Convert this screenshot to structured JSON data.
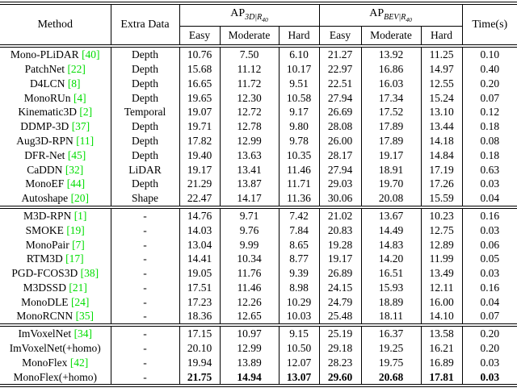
{
  "table": {
    "citation_color": "#00dd00",
    "header": {
      "method": "Method",
      "extra_data": "Extra Data",
      "ap3d": {
        "prefix": "AP",
        "sub": "3D|R",
        "subsub": "40"
      },
      "apbev": {
        "prefix": "AP",
        "sub": "BEV|R",
        "subsub": "40"
      },
      "time": "Time(s)",
      "subcols": [
        "Easy",
        "Moderate",
        "Hard",
        "Easy",
        "Moderate",
        "Hard"
      ]
    },
    "groups": [
      {
        "rows": [
          {
            "method": "Mono-PLiDAR",
            "cite": "[40]",
            "extra": "Depth",
            "values": [
              "10.76",
              "7.50",
              "6.10",
              "21.27",
              "13.92",
              "11.25",
              "0.10"
            ],
            "bold": false
          },
          {
            "method": "PatchNet",
            "cite": "[22]",
            "extra": "Depth",
            "values": [
              "15.68",
              "11.12",
              "10.17",
              "22.97",
              "16.86",
              "14.97",
              "0.40"
            ],
            "bold": false
          },
          {
            "method": "D4LCN",
            "cite": "[8]",
            "extra": "Depth",
            "values": [
              "16.65",
              "11.72",
              "9.51",
              "22.51",
              "16.03",
              "12.55",
              "0.20"
            ],
            "bold": false
          },
          {
            "method": "MonoRUn",
            "cite": "[4]",
            "extra": "Depth",
            "values": [
              "19.65",
              "12.30",
              "10.58",
              "27.94",
              "17.34",
              "15.24",
              "0.07"
            ],
            "bold": false
          },
          {
            "method": "Kinematic3D",
            "cite": "[2]",
            "extra": "Temporal",
            "values": [
              "19.07",
              "12.72",
              "9.17",
              "26.69",
              "17.52",
              "13.10",
              "0.12"
            ],
            "bold": false
          },
          {
            "method": "DDMP-3D",
            "cite": "[37]",
            "extra": "Depth",
            "values": [
              "19.71",
              "12.78",
              "9.80",
              "28.08",
              "17.89",
              "13.44",
              "0.18"
            ],
            "bold": false
          },
          {
            "method": "Aug3D-RPN",
            "cite": "[11]",
            "extra": "Depth",
            "values": [
              "17.82",
              "12.99",
              "9.78",
              "26.00",
              "17.89",
              "14.18",
              "0.08"
            ],
            "bold": false
          },
          {
            "method": "DFR-Net",
            "cite": "[45]",
            "extra": "Depth",
            "values": [
              "19.40",
              "13.63",
              "10.35",
              "28.17",
              "19.17",
              "14.84",
              "0.18"
            ],
            "bold": false
          },
          {
            "method": "CaDDN",
            "cite": "[32]",
            "extra": "LiDAR",
            "values": [
              "19.17",
              "13.41",
              "11.46",
              "27.94",
              "18.91",
              "17.19",
              "0.63"
            ],
            "bold": false
          },
          {
            "method": "MonoEF",
            "cite": "[44]",
            "extra": "Depth",
            "values": [
              "21.29",
              "13.87",
              "11.71",
              "29.03",
              "19.70",
              "17.26",
              "0.03"
            ],
            "bold": false
          },
          {
            "method": "Autoshape",
            "cite": "[20]",
            "extra": "Shape",
            "values": [
              "22.47",
              "14.17",
              "11.36",
              "30.06",
              "20.08",
              "15.59",
              "0.04"
            ],
            "bold": false
          }
        ]
      },
      {
        "rows": [
          {
            "method": "M3D-RPN",
            "cite": "[1]",
            "extra": "-",
            "values": [
              "14.76",
              "9.71",
              "7.42",
              "21.02",
              "13.67",
              "10.23",
              "0.16"
            ],
            "bold": false
          },
          {
            "method": "SMOKE",
            "cite": "[19]",
            "extra": "-",
            "values": [
              "14.03",
              "9.76",
              "7.84",
              "20.83",
              "14.49",
              "12.75",
              "0.03"
            ],
            "bold": false
          },
          {
            "method": "MonoPair",
            "cite": "[7]",
            "extra": "-",
            "values": [
              "13.04",
              "9.99",
              "8.65",
              "19.28",
              "14.83",
              "12.89",
              "0.06"
            ],
            "bold": false
          },
          {
            "method": "RTM3D",
            "cite": "[17]",
            "extra": "-",
            "values": [
              "14.41",
              "10.34",
              "8.77",
              "19.17",
              "14.20",
              "11.99",
              "0.05"
            ],
            "bold": false
          },
          {
            "method": "PGD-FCOS3D",
            "cite": "[38]",
            "extra": "-",
            "values": [
              "19.05",
              "11.76",
              "9.39",
              "26.89",
              "16.51",
              "13.49",
              "0.03"
            ],
            "bold": false
          },
          {
            "method": "M3DSSD",
            "cite": "[21]",
            "extra": "-",
            "values": [
              "17.51",
              "11.46",
              "8.98",
              "24.15",
              "15.93",
              "12.11",
              "0.16"
            ],
            "bold": false
          },
          {
            "method": "MonoDLE",
            "cite": "[24]",
            "extra": "-",
            "values": [
              "17.23",
              "12.26",
              "10.29",
              "24.79",
              "18.89",
              "16.00",
              "0.04"
            ],
            "bold": false
          },
          {
            "method": "MonoRCNN",
            "cite": "[35]",
            "extra": "-",
            "values": [
              "18.36",
              "12.65",
              "10.03",
              "25.48",
              "18.11",
              "14.10",
              "0.07"
            ],
            "bold": false
          }
        ]
      },
      {
        "rows": [
          {
            "method": "ImVoxelNet",
            "cite": "[34]",
            "extra": "-",
            "values": [
              "17.15",
              "10.97",
              "9.15",
              "25.19",
              "16.37",
              "13.58",
              "0.20"
            ],
            "bold": false
          },
          {
            "method": "ImVoxelNet(+homo)",
            "cite": "",
            "extra": "-",
            "values": [
              "20.10",
              "12.99",
              "10.50",
              "29.18",
              "19.25",
              "16.21",
              "0.20"
            ],
            "bold": false
          },
          {
            "method": "MonoFlex",
            "cite": "[42]",
            "extra": "-",
            "values": [
              "19.94",
              "13.89",
              "12.07",
              "28.23",
              "19.75",
              "16.89",
              "0.03"
            ],
            "bold": false
          },
          {
            "method": "MonoFlex(+homo)",
            "cite": "",
            "extra": "-",
            "values": [
              "21.75",
              "14.94",
              "13.07",
              "29.60",
              "20.68",
              "17.81",
              "0.03"
            ],
            "bold": true
          }
        ]
      }
    ]
  }
}
